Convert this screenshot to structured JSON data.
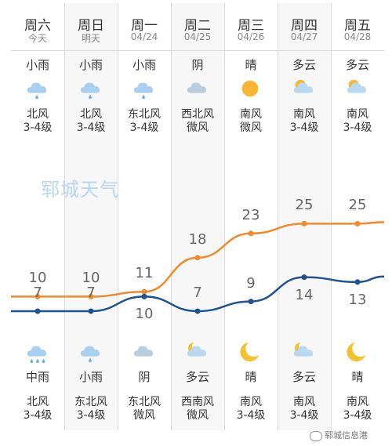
{
  "watermark": "郓城天气",
  "footer": "郓城信息港",
  "days": [
    {
      "weekday": "周六",
      "date": "今天",
      "day_cond": "小雨",
      "day_icon": "light-rain-icon",
      "day_wind": [
        "北风",
        "3-4级"
      ],
      "night_icon": "moderate-rain-icon",
      "night_cond": "中雨",
      "night_wind": [
        "北风",
        "3-4级"
      ]
    },
    {
      "weekday": "周日",
      "date": "明天",
      "day_cond": "小雨",
      "day_icon": "light-rain-icon",
      "day_wind": [
        "北风",
        "3-4级"
      ],
      "night_icon": "light-rain-icon",
      "night_cond": "小雨",
      "night_wind": [
        "东北风",
        "3-4级"
      ]
    },
    {
      "weekday": "周一",
      "date": "04/24",
      "day_cond": "小雨",
      "day_icon": "light-rain-icon",
      "day_wind": [
        "东北风",
        "3-4级"
      ],
      "night_icon": "overcast-icon",
      "night_cond": "阴",
      "night_wind": [
        "东北风",
        "微风"
      ]
    },
    {
      "weekday": "周二",
      "date": "04/25",
      "day_cond": "阴",
      "day_icon": "overcast-icon",
      "day_wind": [
        "西北风",
        "微风"
      ],
      "night_icon": "partly-cloudy-night-icon",
      "night_cond": "多云",
      "night_wind": [
        "西南风",
        "微风"
      ]
    },
    {
      "weekday": "周三",
      "date": "04/26",
      "day_cond": "晴",
      "day_icon": "sunny-icon",
      "day_wind": [
        "南风",
        "微风"
      ],
      "night_icon": "moon-icon",
      "night_cond": "晴",
      "night_wind": [
        "南风",
        "3-4级"
      ]
    },
    {
      "weekday": "周四",
      "date": "04/27",
      "day_cond": "多云",
      "day_icon": "partly-cloudy-icon",
      "day_wind": [
        "南风",
        "3-4级"
      ],
      "night_icon": "partly-cloudy-night-icon",
      "night_cond": "多云",
      "night_wind": [
        "南风",
        "3-4级"
      ]
    },
    {
      "weekday": "周五",
      "date": "04/28",
      "day_cond": "多云",
      "day_icon": "partly-cloudy-icon",
      "day_wind": [
        "南风",
        "3-4级"
      ],
      "night_icon": "moon-icon",
      "night_cond": "晴",
      "night_wind": [
        "南风",
        "3-4级"
      ]
    }
  ],
  "chart_data": {
    "type": "line",
    "categories": [
      "周六",
      "周日",
      "周一",
      "周二",
      "周三",
      "周四",
      "周五"
    ],
    "series": [
      {
        "values": [
          10,
          10,
          11,
          18,
          23,
          25,
          25
        ],
        "color": "#f08a2c"
      },
      {
        "values": [
          7,
          7,
          10,
          7,
          9,
          14,
          13
        ],
        "color": "#1e5391"
      }
    ]
  }
}
